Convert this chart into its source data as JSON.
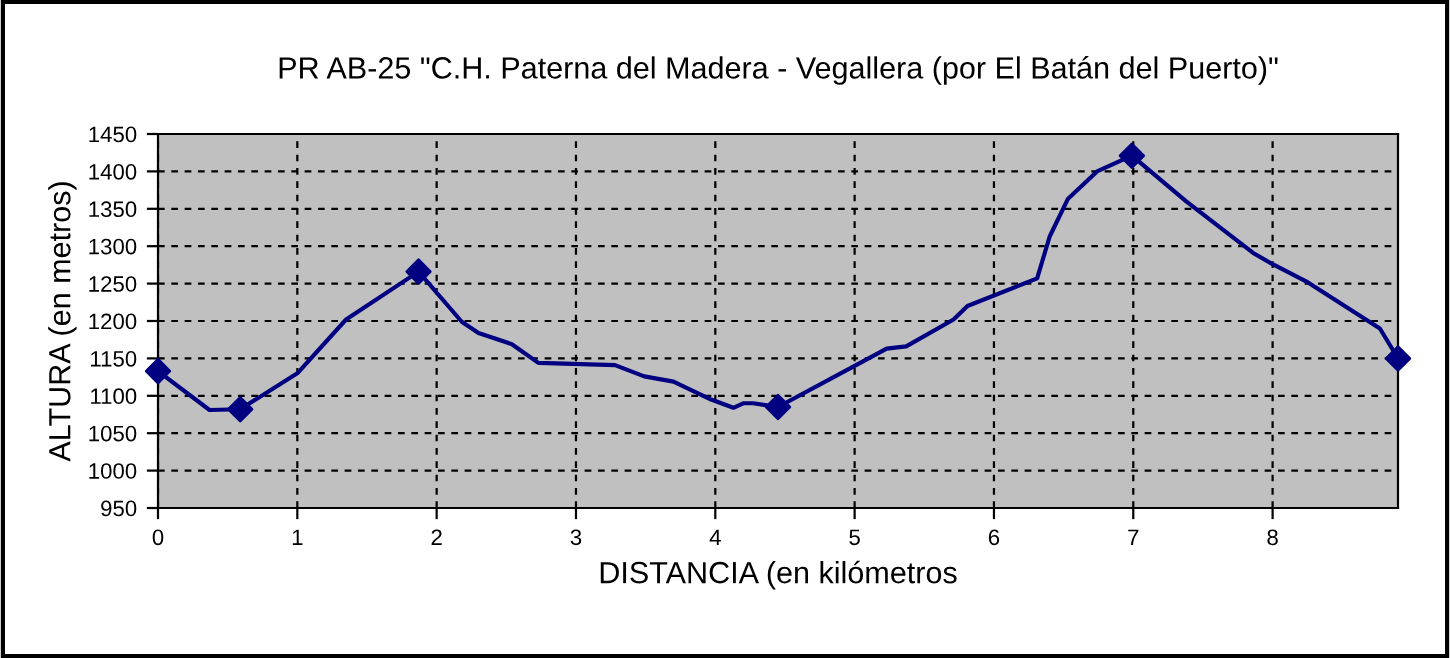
{
  "chart_data": {
    "type": "line",
    "title": "PR AB-25 \"C.H. Paterna del Madera - Vegallera (por El Batán del Puerto)\"",
    "xlabel": "DISTANCIA (en kilómetros",
    "ylabel": "ALTURA (en metros)",
    "series": [
      {
        "color": "#000080",
        "marker": "none",
        "x": [
          0,
          0.37,
          0.59,
          1.0,
          1.35,
          1.87,
          2.18,
          2.3,
          2.54,
          2.73,
          3.28,
          3.49,
          3.7,
          3.97,
          4.13,
          4.2,
          4.27,
          4.45,
          4.99,
          5.23,
          5.37,
          5.71,
          5.81,
          6.31,
          6.4,
          6.53,
          6.74,
          6.99,
          7.38,
          7.86,
          8.0,
          8.24,
          8.77,
          8.9
        ],
        "values": [
          1133,
          1081,
          1082,
          1130,
          1202,
          1266,
          1199,
          1184,
          1169,
          1144,
          1141,
          1126,
          1119,
          1095,
          1084,
          1090,
          1090,
          1085,
          1139,
          1163,
          1166,
          1202,
          1220,
          1257,
          1313,
          1363,
          1400,
          1421,
          1360,
          1291,
          1276,
          1253,
          1190,
          1150
        ]
      },
      {
        "type": "scatter",
        "color": "#000080",
        "marker": "diamond",
        "x": [
          0,
          0.59,
          1.87,
          4.45,
          6.99,
          8.9
        ],
        "values": [
          1133,
          1082,
          1266,
          1085,
          1421,
          1150
        ]
      }
    ],
    "xlim": [
      0,
      8.9
    ],
    "xticks": [
      0,
      1,
      2,
      3,
      4,
      5,
      6,
      7,
      8
    ],
    "ylim": [
      950,
      1450
    ],
    "yticks": [
      950,
      1000,
      1050,
      1100,
      1150,
      1200,
      1250,
      1300,
      1350,
      1400,
      1450
    ],
    "grid": true
  }
}
